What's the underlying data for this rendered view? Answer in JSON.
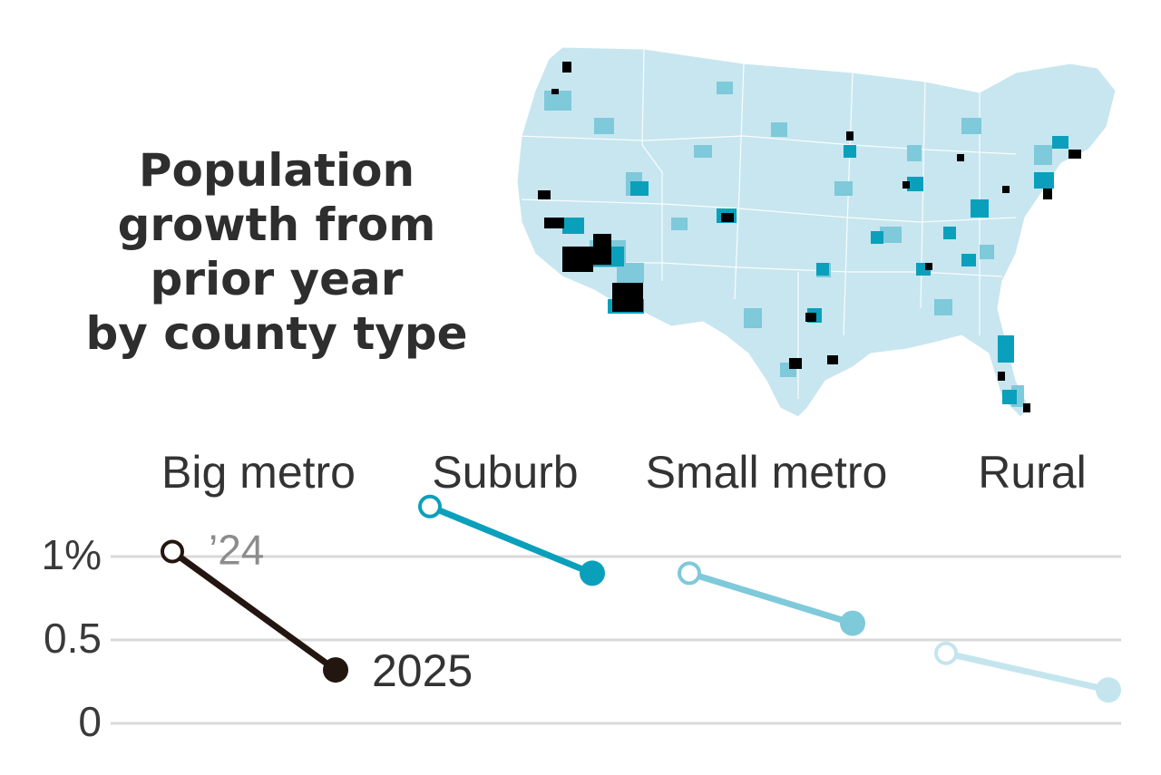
{
  "title_lines": [
    "Population",
    "growth from",
    "prior year",
    "by county type"
  ],
  "colors": {
    "big_metro": "#231510",
    "suburb": "#0aa0bc",
    "small_metro": "#7ec9da",
    "rural": "#c4e5ee",
    "map_base": "#c8e6ef",
    "gridline": "#d9d9d9",
    "axis_text": "#3a3a3a",
    "label_gray": "#8c8c8c"
  },
  "map": {
    "description_icon": "us-county-map",
    "legend_categories": [
      "Big metro",
      "Suburb",
      "Small metro",
      "Rural"
    ]
  },
  "chart_data": {
    "type": "line",
    "title": "Population growth from prior year by county type",
    "ylim": [
      0,
      1.05
    ],
    "y_ticks": [
      {
        "value": 0,
        "label": "0"
      },
      {
        "value": 0.5,
        "label": "0.5"
      },
      {
        "value": 1,
        "label": "1%"
      }
    ],
    "x_labels": [
      "’24",
      "2025"
    ],
    "grid": true,
    "series": [
      {
        "name": "Big metro",
        "values": [
          1.03,
          0.32
        ]
      },
      {
        "name": "Suburb",
        "values": [
          1.3,
          0.9
        ]
      },
      {
        "name": "Small metro",
        "values": [
          0.9,
          0.6
        ]
      },
      {
        "name": "Rural",
        "values": [
          0.42,
          0.2
        ]
      }
    ]
  }
}
